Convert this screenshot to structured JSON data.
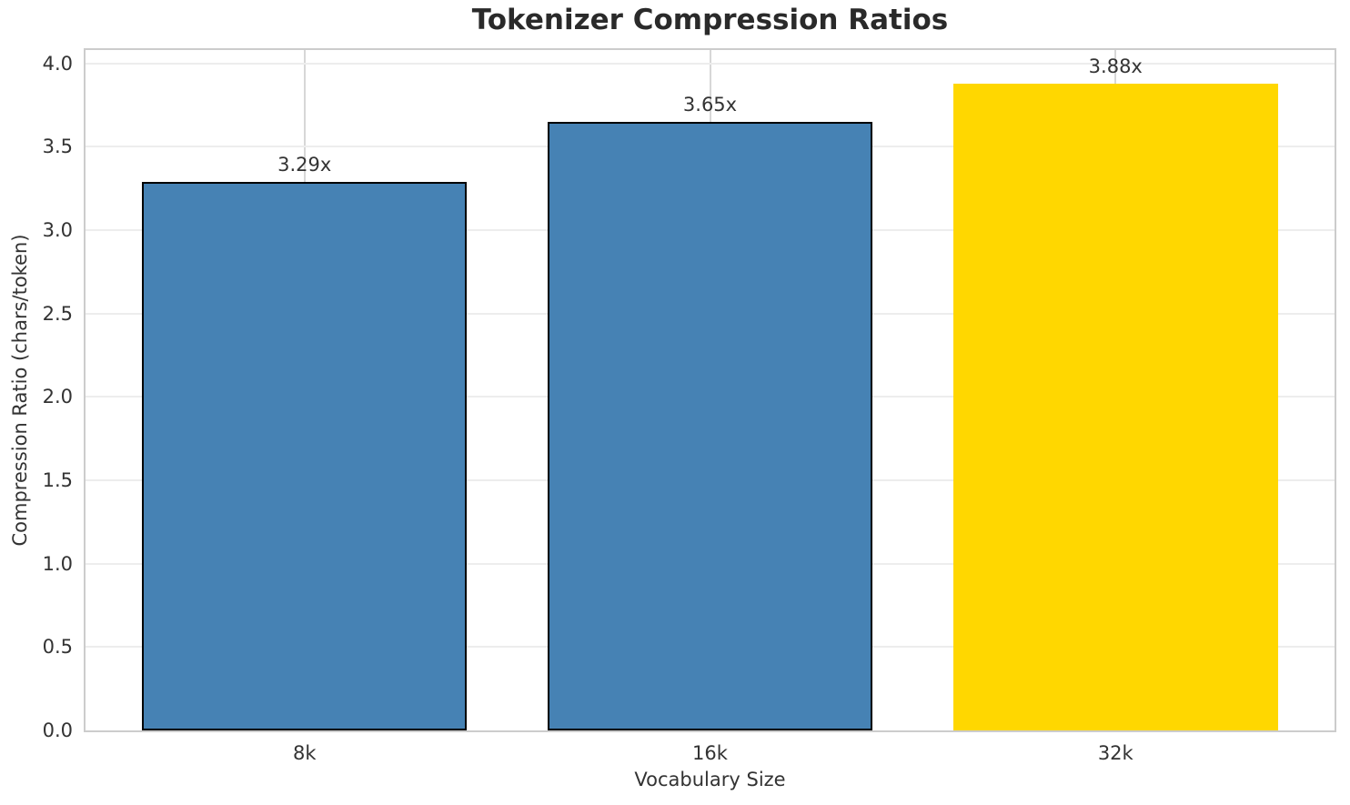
{
  "chart_data": {
    "type": "bar",
    "title": "Tokenizer Compression Ratios",
    "xlabel": "Vocabulary Size",
    "ylabel": "Compression Ratio (chars/token)",
    "categories": [
      "8k",
      "16k",
      "32k"
    ],
    "values": [
      3.29,
      3.65,
      3.88
    ],
    "bar_labels": [
      "3.29x",
      "3.65x",
      "3.88x"
    ],
    "bar_colors": [
      "#4682b4",
      "#4682b4",
      "#ffd700"
    ],
    "bar_edge_colors": [
      "#000000",
      "#000000",
      "none"
    ],
    "highlighted_category": "32k",
    "ylim": [
      0,
      4.08
    ],
    "yticks": [
      0.0,
      0.5,
      1.0,
      1.5,
      2.0,
      2.5,
      3.0,
      3.5,
      4.0
    ],
    "ytick_labels": [
      "0.0",
      "0.5",
      "1.0",
      "1.5",
      "2.0",
      "2.5",
      "3.0",
      "3.5",
      "4.0"
    ],
    "grid": true,
    "legend": false,
    "colors": {
      "primary_bar": "#4682b4",
      "highlight_bar": "#ffd700",
      "bar_edge": "#000000",
      "spine": "#cccccc",
      "grid_horizontal": "#ededed",
      "grid_vertical": "#d7d7d7",
      "title_text": "#2a2a2a",
      "label_text": "#333333"
    }
  }
}
